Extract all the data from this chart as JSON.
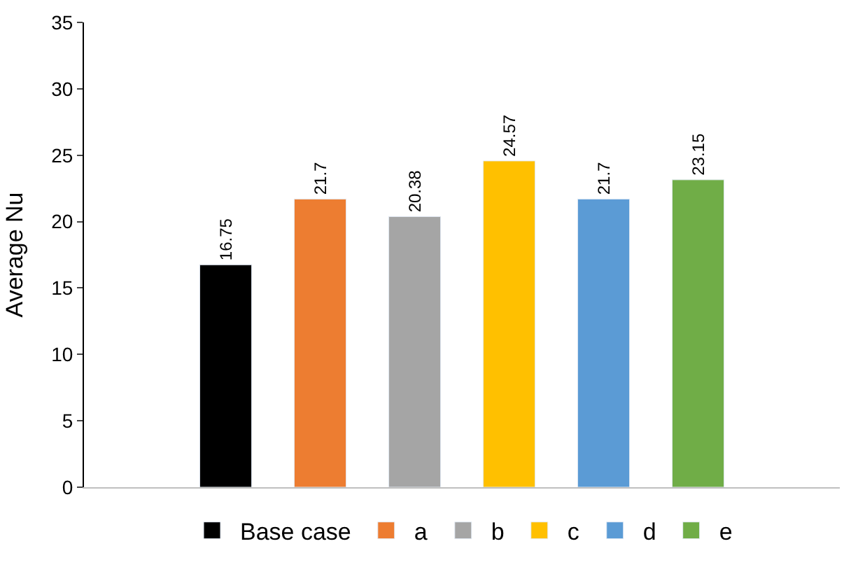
{
  "chart_data": {
    "type": "bar",
    "ylabel": "Average Nu",
    "categories": [
      null,
      null,
      null,
      null,
      null,
      null,
      null,
      null
    ],
    "series": [
      {
        "name": "Base case",
        "color": "#000000",
        "values": [
          null,
          16.75,
          null,
          null,
          null,
          null,
          null,
          null
        ]
      },
      {
        "name": "a",
        "color": "#ed7d31",
        "values": [
          null,
          null,
          21.7,
          null,
          null,
          null,
          null,
          null
        ]
      },
      {
        "name": "b",
        "color": "#a5a5a5",
        "values": [
          null,
          null,
          null,
          20.38,
          null,
          null,
          null,
          null
        ]
      },
      {
        "name": "c",
        "color": "#ffc000",
        "values": [
          null,
          null,
          null,
          null,
          24.57,
          null,
          null,
          null
        ]
      },
      {
        "name": "d",
        "color": "#5b9bd5",
        "values": [
          null,
          null,
          null,
          null,
          null,
          21.7,
          null,
          null
        ]
      },
      {
        "name": "e",
        "color": "#70ad47",
        "values": [
          null,
          null,
          null,
          null,
          null,
          null,
          23.15,
          null
        ]
      }
    ],
    "ylim": [
      0,
      35
    ],
    "yticks": [
      0,
      5,
      10,
      15,
      20,
      25,
      30,
      35
    ],
    "data_labels": true,
    "legend": "bottom"
  }
}
